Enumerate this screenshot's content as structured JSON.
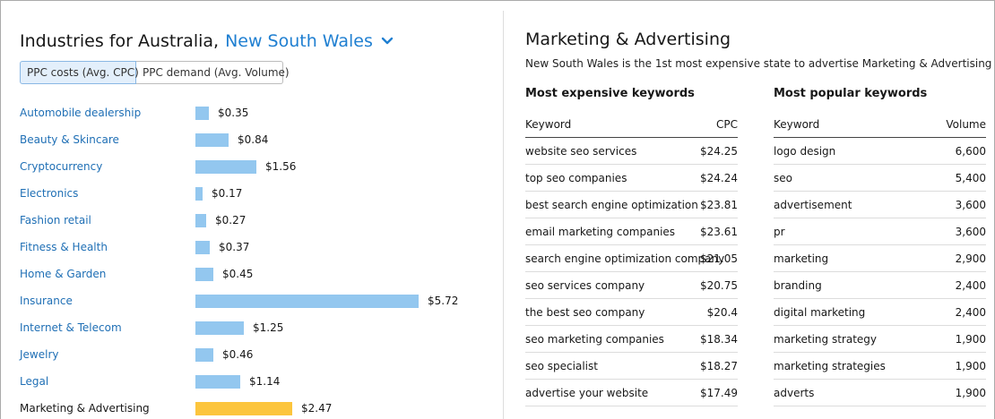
{
  "left": {
    "title_prefix": "Industries for Australia,",
    "region": "New South Wales",
    "toggle": {
      "option1": "PPC costs (Avg. CPC)",
      "option2": "PPC demand (Avg. Volume)"
    },
    "rows": [
      {
        "label": "Automobile dealership",
        "value": "$0.35",
        "cpc": 0.35
      },
      {
        "label": "Beauty & Skincare",
        "value": "$0.84",
        "cpc": 0.84
      },
      {
        "label": "Cryptocurrency",
        "value": "$1.56",
        "cpc": 1.56
      },
      {
        "label": "Electronics",
        "value": "$0.17",
        "cpc": 0.17
      },
      {
        "label": "Fashion retail",
        "value": "$0.27",
        "cpc": 0.27
      },
      {
        "label": "Fitness & Health",
        "value": "$0.37",
        "cpc": 0.37
      },
      {
        "label": "Home & Garden",
        "value": "$0.45",
        "cpc": 0.45
      },
      {
        "label": "Insurance",
        "value": "$5.72",
        "cpc": 5.72
      },
      {
        "label": "Internet & Telecom",
        "value": "$1.25",
        "cpc": 1.25
      },
      {
        "label": "Jewelry",
        "value": "$0.46",
        "cpc": 0.46
      },
      {
        "label": "Legal",
        "value": "$1.14",
        "cpc": 1.14
      },
      {
        "label": "Marketing & Advertising",
        "value": "$2.47",
        "cpc": 2.47,
        "selected": true
      }
    ],
    "colors": {
      "bar": "#93c7ef",
      "selected_bar": "#fcc53d",
      "link": "#1f6fb5",
      "region": "#1f7fd1"
    }
  },
  "right": {
    "title": "Marketing & Advertising",
    "subtitle": "New South Wales is the 1st most expensive state to advertise Marketing & Advertising",
    "expensive": {
      "heading": "Most expensive keywords",
      "col_keyword": "Keyword",
      "col_value": "CPC",
      "rows": [
        {
          "keyword": "website seo services",
          "value": "$24.25"
        },
        {
          "keyword": "top seo companies",
          "value": "$24.24"
        },
        {
          "keyword": "best search engine optimization",
          "value": "$23.81"
        },
        {
          "keyword": "email marketing companies",
          "value": "$23.61"
        },
        {
          "keyword": "search engine optimization company",
          "value": "$21.05"
        },
        {
          "keyword": "seo services company",
          "value": "$20.75"
        },
        {
          "keyword": "the best seo company",
          "value": "$20.4"
        },
        {
          "keyword": "seo marketing companies",
          "value": "$18.34"
        },
        {
          "keyword": "seo specialist",
          "value": "$18.27"
        },
        {
          "keyword": "advertise your website",
          "value": "$17.49"
        }
      ]
    },
    "popular": {
      "heading": "Most popular keywords",
      "col_keyword": "Keyword",
      "col_value": "Volume",
      "rows": [
        {
          "keyword": "logo design",
          "value": "6,600"
        },
        {
          "keyword": "seo",
          "value": "5,400"
        },
        {
          "keyword": "advertisement",
          "value": "3,600"
        },
        {
          "keyword": "pr",
          "value": "3,600"
        },
        {
          "keyword": "marketing",
          "value": "2,900"
        },
        {
          "keyword": "branding",
          "value": "2,400"
        },
        {
          "keyword": "digital marketing",
          "value": "2,400"
        },
        {
          "keyword": "marketing strategy",
          "value": "1,900"
        },
        {
          "keyword": "marketing strategies",
          "value": "1,900"
        },
        {
          "keyword": "adverts",
          "value": "1,900"
        }
      ]
    }
  }
}
